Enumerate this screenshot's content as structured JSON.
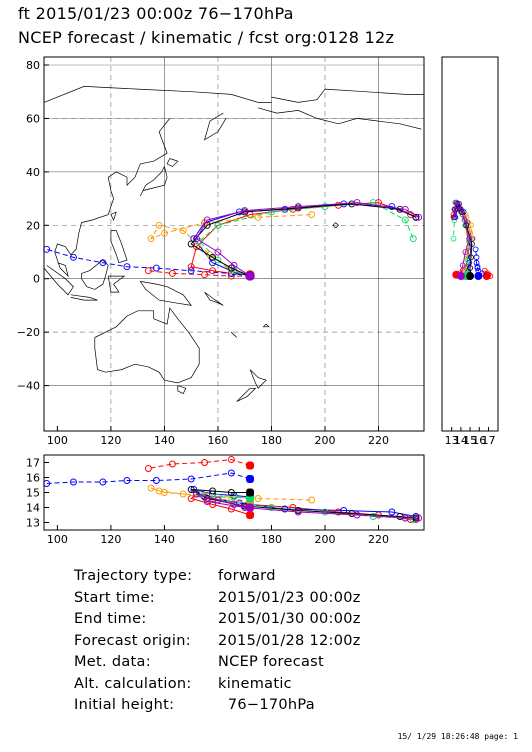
{
  "header": {
    "line1": "ft 2015/01/23 00:00z   76−170hPa",
    "line2": "NCEP forecast / kinematic / fcst org:0128 12z"
  },
  "map": {
    "lon_range": [
      95,
      237
    ],
    "lat_range": [
      -57,
      83
    ],
    "lon_ticks": [
      100,
      120,
      140,
      160,
      180,
      200,
      220
    ],
    "lat_ticks": [
      80,
      60,
      40,
      20,
      0,
      -20,
      -40
    ],
    "grid_lons": [
      120,
      160,
      200
    ],
    "grid_lats": [
      60,
      20,
      -20
    ],
    "lon_tick_labels": [
      "100",
      "120",
      "140",
      "160",
      "180",
      "200",
      "220"
    ],
    "lat_tick_labels": [
      "80",
      "60",
      "40",
      "20",
      "0",
      "−20",
      "−40"
    ]
  },
  "height_panel": {
    "range": [
      12.5,
      17.5
    ],
    "ticks": [
      17,
      16,
      15,
      14,
      13
    ],
    "tick_labels": [
      "17",
      "16",
      "15",
      "14",
      "13"
    ]
  },
  "side_panel": {
    "tick_labels": [
      "13",
      "14",
      "15",
      "16",
      "17"
    ]
  },
  "chart_data": {
    "type": "line",
    "title": "ft 2015/01/23 00:00z 76−170hPa",
    "xlabel": "",
    "ylabel": "",
    "grid": true,
    "series": [
      {
        "color": "#ff0000",
        "dash": "solid",
        "h0": 13.5,
        "lon": [
          172,
          165,
          158,
          150,
          152,
          160,
          172,
          188,
          205,
          220,
          232,
          234
        ],
        "lat": [
          1.5,
          2,
          3,
          4.5,
          12,
          20,
          24,
          26,
          27.5,
          28.5,
          24,
          23
        ],
        "h": [
          13.5,
          13.9,
          14.2,
          14.6,
          14.9,
          14.5,
          14.2,
          14.0,
          13.7,
          13.5,
          13.2,
          13.2
        ]
      },
      {
        "color": "#ff0000",
        "dash": "dashed",
        "h0": 16.8,
        "lon": [
          172,
          165,
          155,
          143,
          134
        ],
        "lat": [
          1,
          1,
          1.5,
          2,
          3
        ],
        "h": [
          16.8,
          17.2,
          17.0,
          16.9,
          16.6
        ]
      },
      {
        "color": "#0000ff",
        "dash": "dashed",
        "h0": 15.9,
        "lon": [
          172,
          165,
          150,
          137,
          126,
          117,
          106,
          96
        ],
        "lat": [
          1,
          2,
          3,
          4,
          4.5,
          6,
          8,
          11
        ],
        "h": [
          15.9,
          16.3,
          15.9,
          15.8,
          15.8,
          15.7,
          15.7,
          15.6
        ]
      },
      {
        "color": "#0000ff",
        "dash": "solid",
        "h0": 14.7,
        "lon": [
          172,
          166,
          158,
          151,
          155,
          168,
          185,
          207,
          225,
          234
        ],
        "lat": [
          1,
          2.5,
          6,
          15,
          21,
          25,
          26,
          28,
          27,
          23
        ],
        "h": [
          14.7,
          14.8,
          14.9,
          15.2,
          14.7,
          14.3,
          13.9,
          13.8,
          13.7,
          13.4
        ]
      },
      {
        "color": "#ff9900",
        "dash": "dashed",
        "h0": 14.3,
        "lon": [
          172,
          165,
          157,
          147,
          138,
          135,
          140,
          155,
          175,
          195
        ],
        "lat": [
          1,
          3,
          9,
          18,
          20,
          15,
          17,
          21,
          23,
          24
        ],
        "h": [
          14.3,
          14.5,
          14.6,
          14.9,
          15.1,
          15.3,
          15.0,
          14.8,
          14.6,
          14.5
        ]
      },
      {
        "color": "#00dd66",
        "dash": "dashed",
        "h0": 14.6,
        "lon": [
          172,
          166,
          160,
          153,
          160,
          180,
          200,
          218,
          230,
          233
        ],
        "lat": [
          1,
          3,
          7,
          14,
          20,
          25,
          27,
          28.5,
          22,
          15
        ],
        "h": [
          14.6,
          14.7,
          14.7,
          14.9,
          14.5,
          14.0,
          13.7,
          13.4,
          13.3,
          13.2
        ]
      },
      {
        "color": "#000000",
        "dash": "solid",
        "h0": 15.0,
        "lon": [
          172,
          165,
          158,
          150,
          156,
          170,
          190,
          210,
          228,
          234
        ],
        "lat": [
          1,
          4,
          8,
          13,
          20,
          25,
          26.5,
          28,
          26,
          23
        ],
        "h": [
          15.0,
          15.0,
          15.1,
          15.2,
          14.6,
          14.1,
          13.8,
          13.6,
          13.4,
          13.3
        ]
      },
      {
        "color": "#9900cc",
        "dash": "solid",
        "h0": 14.0,
        "lon": [
          172,
          166,
          160,
          152,
          156,
          170,
          190,
          212,
          230,
          235
        ],
        "lat": [
          1,
          5,
          10,
          15,
          22,
          25.5,
          27,
          28.5,
          26,
          23
        ],
        "h": [
          14.0,
          14.2,
          14.5,
          14.9,
          14.4,
          14.0,
          13.7,
          13.5,
          13.3,
          13.3
        ]
      }
    ]
  },
  "info": {
    "rows": [
      {
        "key": "Trajectory type:",
        "value": "forward"
      },
      {
        "key": "Start time:",
        "value": "2015/01/23 00:00z"
      },
      {
        "key": "End time:",
        "value": "2015/01/30 00:00z"
      },
      {
        "key": "Forecast origin:",
        "value": "2015/01/28 12:00z"
      },
      {
        "key": "Met. data:",
        "value": "NCEP forecast"
      },
      {
        "key": "Alt. calculation:",
        "value": "kinematic"
      },
      {
        "key": "Initial height:",
        "value": "  76−170hPa"
      }
    ]
  },
  "footer": "15/ 1/29 18:26:48 page: 1"
}
